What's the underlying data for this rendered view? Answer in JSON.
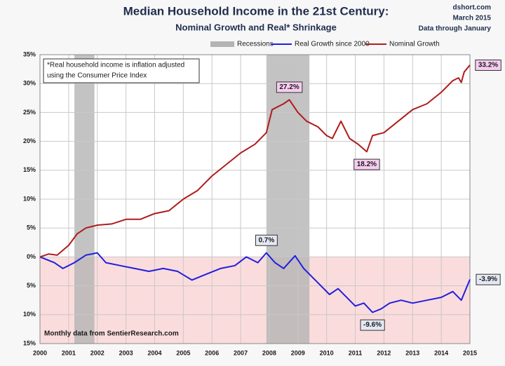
{
  "chart_data": {
    "type": "line",
    "title": "Median Household Income in the 21st Century:",
    "subtitle": "Nominal  Growth and Real* Shrinkage",
    "corner_texts": [
      "dshort.com",
      "March 2015",
      "Data through January"
    ],
    "note": [
      "*Real household  income is inflation adjusted",
      "using the Consumer Price Index"
    ],
    "source": "Monthly data from SentierResearch.com",
    "recessions": {
      "name": "Recessions",
      "color": "#b4b4b4",
      "periods": [
        [
          2001.2,
          2001.9
        ],
        [
          2007.9,
          2009.4
        ]
      ]
    },
    "negative_shade": "#fbdcdc",
    "series": [
      {
        "name": "Real Growth since 2000",
        "color": "#1f1fe0",
        "x": [
          2000.0,
          2000.5,
          2000.8,
          2001.2,
          2001.6,
          2002.0,
          2002.3,
          2002.8,
          2003.3,
          2003.8,
          2004.3,
          2004.8,
          2005.3,
          2005.8,
          2006.3,
          2006.8,
          2007.2,
          2007.6,
          2007.9,
          2008.2,
          2008.5,
          2008.9,
          2009.2,
          2009.5,
          2009.8,
          2010.1,
          2010.4,
          2010.7,
          2011.0,
          2011.3,
          2011.6,
          2011.9,
          2012.2,
          2012.6,
          2013.0,
          2013.5,
          2014.0,
          2014.4,
          2014.7,
          2015.0
        ],
        "values": [
          0,
          -1,
          -2,
          -1,
          0.3,
          0.7,
          -1,
          -1.5,
          -2,
          -2.5,
          -2,
          -2.5,
          -4,
          -3,
          -2,
          -1.5,
          0,
          -1,
          0.7,
          -1,
          -2,
          0.2,
          -2,
          -3.5,
          -5,
          -6.5,
          -5.5,
          -7,
          -8.5,
          -8,
          -9.6,
          -9,
          -8,
          -7.5,
          -8,
          -7.5,
          -7,
          -6,
          -7.5,
          -3.9
        ]
      },
      {
        "name": "Nominal Growth",
        "color": "#b01c1c",
        "x": [
          2000.0,
          2000.3,
          2000.6,
          2001.0,
          2001.3,
          2001.6,
          2002.0,
          2002.5,
          2003.0,
          2003.5,
          2004.0,
          2004.5,
          2005.0,
          2005.5,
          2006.0,
          2006.5,
          2007.0,
          2007.5,
          2007.9,
          2008.1,
          2008.5,
          2008.7,
          2009.0,
          2009.3,
          2009.7,
          2010.0,
          2010.2,
          2010.5,
          2010.8,
          2011.1,
          2011.4,
          2011.6,
          2012.0,
          2012.5,
          2013.0,
          2013.5,
          2014.0,
          2014.4,
          2014.6,
          2014.7,
          2014.8,
          2015.0
        ],
        "values": [
          0,
          0.5,
          0.3,
          2,
          4,
          5,
          5.5,
          5.7,
          6.5,
          6.5,
          7.5,
          8,
          10,
          11.5,
          14,
          16,
          18,
          19.5,
          21.5,
          25.5,
          26.5,
          27.2,
          25,
          23.5,
          22.5,
          21,
          20.5,
          23.5,
          20.5,
          19.5,
          18.2,
          21,
          21.5,
          23.5,
          25.5,
          26.5,
          28.5,
          30.5,
          31,
          30.2,
          32,
          33.2
        ]
      }
    ],
    "annotations": [
      {
        "text": "27.2%",
        "x": 2008.7,
        "y": 27.2,
        "series": 1,
        "side": "above"
      },
      {
        "text": "18.2%",
        "x": 2011.4,
        "y": 18.2,
        "series": 1,
        "side": "below"
      },
      {
        "text": "33.2%",
        "x": 2015.0,
        "y": 33.2,
        "series": 1,
        "side": "right"
      },
      {
        "text": "0.7%",
        "x": 2007.9,
        "y": 0.7,
        "series": 0,
        "side": "above"
      },
      {
        "text": "-9.6%",
        "x": 2011.6,
        "y": -9.6,
        "series": 0,
        "side": "below"
      },
      {
        "text": "-3.9%",
        "x": 2015.0,
        "y": -3.9,
        "series": 0,
        "side": "right"
      }
    ],
    "xlim": [
      2000,
      2015
    ],
    "xticks": [
      2000,
      2001,
      2002,
      2003,
      2004,
      2005,
      2006,
      2007,
      2008,
      2009,
      2010,
      2011,
      2012,
      2013,
      2014,
      2015
    ],
    "ylim": [
      -15,
      35
    ],
    "yticks": [
      {
        "value": 35,
        "label": "35%"
      },
      {
        "value": 30,
        "label": "30%"
      },
      {
        "value": 25,
        "label": "25%"
      },
      {
        "value": 20,
        "label": "20%"
      },
      {
        "value": 15,
        "label": "15%"
      },
      {
        "value": 10,
        "label": "10%"
      },
      {
        "value": 5,
        "label": "5%"
      },
      {
        "value": 0,
        "label": "0%"
      },
      {
        "value": -5,
        "label": "5%"
      },
      {
        "value": -10,
        "label": "10%"
      },
      {
        "value": -15,
        "label": "15%"
      }
    ],
    "grid": true
  }
}
